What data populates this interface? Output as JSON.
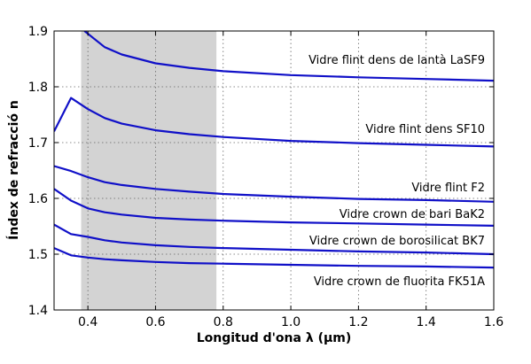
{
  "chart_data": {
    "type": "line",
    "title": "",
    "xlabel": "Longitud d'ona λ (µm)",
    "ylabel": "Índex de refracció n",
    "xlim": [
      0.3,
      1.6
    ],
    "ylim": [
      1.4,
      1.9
    ],
    "xticks": [
      0.4,
      0.6,
      0.8,
      1.0,
      1.2,
      1.4,
      1.6
    ],
    "xtick_labels": [
      "0.4",
      "0.6",
      "0.8",
      "1.0",
      "1.2",
      "1.4",
      "1.6"
    ],
    "yticks": [
      1.4,
      1.5,
      1.6,
      1.7,
      1.8,
      1.9
    ],
    "ytick_labels": [
      "1.4",
      "1.5",
      "1.6",
      "1.7",
      "1.8",
      "1.9"
    ],
    "grid": true,
    "line_color": "#1010c8",
    "shaded_region": {
      "x": [
        0.38,
        0.78
      ],
      "color": "#d3d3d3"
    },
    "series": [
      {
        "name": "Vidre flint dens de lantà LaSF9",
        "x": [
          0.39,
          0.45,
          0.5,
          0.6,
          0.7,
          0.8,
          1.0,
          1.2,
          1.4,
          1.6
        ],
        "y": [
          1.9,
          1.871,
          1.858,
          1.842,
          1.834,
          1.828,
          1.821,
          1.817,
          1.814,
          1.811
        ]
      },
      {
        "name": "Vidre flint dens SF10",
        "x": [
          0.3,
          0.35,
          0.4,
          0.45,
          0.5,
          0.6,
          0.7,
          0.8,
          1.0,
          1.2,
          1.4,
          1.6
        ],
        "y": [
          1.72,
          1.78,
          1.76,
          1.744,
          1.734,
          1.722,
          1.715,
          1.71,
          1.703,
          1.699,
          1.696,
          1.693
        ]
      },
      {
        "name": "Vidre flint F2",
        "x": [
          0.3,
          0.35,
          0.4,
          0.45,
          0.5,
          0.6,
          0.7,
          0.8,
          1.0,
          1.2,
          1.4,
          1.6
        ],
        "y": [
          1.658,
          1.649,
          1.638,
          1.629,
          1.624,
          1.617,
          1.612,
          1.608,
          1.603,
          1.599,
          1.597,
          1.594
        ]
      },
      {
        "name": "Vidre crown de bari BaK2",
        "x": [
          0.3,
          0.35,
          0.4,
          0.45,
          0.5,
          0.6,
          0.7,
          0.8,
          1.0,
          1.2,
          1.4,
          1.6
        ],
        "y": [
          1.617,
          1.596,
          1.582,
          1.575,
          1.571,
          1.565,
          1.562,
          1.56,
          1.557,
          1.555,
          1.553,
          1.551
        ]
      },
      {
        "name": "Vidre crown de borosilicat BK7",
        "x": [
          0.3,
          0.35,
          0.4,
          0.45,
          0.5,
          0.6,
          0.7,
          0.8,
          1.0,
          1.2,
          1.4,
          1.6
        ],
        "y": [
          1.553,
          1.536,
          1.531,
          1.525,
          1.521,
          1.516,
          1.513,
          1.511,
          1.508,
          1.505,
          1.503,
          1.5
        ]
      },
      {
        "name": "Vidre crown de fluorita FK51A",
        "x": [
          0.3,
          0.35,
          0.4,
          0.45,
          0.5,
          0.6,
          0.7,
          0.8,
          1.0,
          1.2,
          1.4,
          1.6
        ],
        "y": [
          1.511,
          1.498,
          1.494,
          1.491,
          1.489,
          1.486,
          1.484,
          1.483,
          1.481,
          1.479,
          1.478,
          1.476
        ]
      }
    ]
  }
}
